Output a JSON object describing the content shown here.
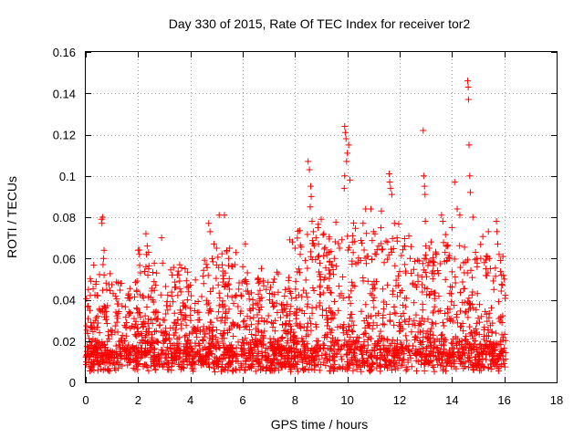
{
  "chart_data": {
    "type": "scatter",
    "title": "Day 330 of 2015, Rate Of TEC Index for receiver tor2",
    "xlabel": "GPS time / hours",
    "ylabel": "ROTI / TECUs",
    "xlim": [
      0,
      18
    ],
    "ylim": [
      0,
      0.16
    ],
    "xticks": [
      0,
      2,
      4,
      6,
      8,
      10,
      12,
      14,
      16,
      18
    ],
    "xtick_labels": [
      "0",
      "2",
      "4",
      "6",
      "8",
      "10",
      "12",
      "14",
      "16",
      "18"
    ],
    "yticks": [
      0,
      0.02,
      0.04,
      0.06,
      0.08,
      0.1,
      0.12,
      0.14,
      0.16
    ],
    "ytick_labels": [
      "0",
      "0.02",
      "0.04",
      "0.06",
      "0.08",
      "0.1",
      "0.12",
      "0.14",
      "0.16"
    ],
    "grid": true,
    "legend": "none",
    "marker": "plus",
    "color": "#ff0000",
    "series": [
      {
        "points": [
          [
            0.6,
            0.079
          ],
          [
            0.62,
            0.077
          ],
          [
            0.65,
            0.08
          ],
          [
            0.7,
            0.064
          ],
          [
            0.68,
            0.06
          ],
          [
            0.66,
            0.057
          ],
          [
            0.7,
            0.052
          ],
          [
            0.1,
            0.045
          ],
          [
            0.2,
            0.049
          ],
          [
            0.8,
            0.045
          ],
          [
            2.0,
            0.064
          ],
          [
            2.05,
            0.062
          ],
          [
            2.3,
            0.072
          ],
          [
            2.35,
            0.066
          ],
          [
            2.4,
            0.063
          ],
          [
            2.9,
            0.07
          ],
          [
            3.3,
            0.052
          ],
          [
            3.5,
            0.052
          ],
          [
            3.8,
            0.055
          ],
          [
            4.0,
            0.047
          ],
          [
            4.7,
            0.077
          ],
          [
            4.75,
            0.073
          ],
          [
            4.9,
            0.067
          ],
          [
            5.0,
            0.065
          ],
          [
            5.1,
            0.081
          ],
          [
            5.3,
            0.081
          ],
          [
            5.5,
            0.065
          ],
          [
            5.7,
            0.057
          ],
          [
            6.0,
            0.056
          ],
          [
            6.1,
            0.067
          ],
          [
            6.6,
            0.05
          ],
          [
            6.9,
            0.045
          ],
          [
            7.2,
            0.05
          ],
          [
            7.8,
            0.069
          ],
          [
            7.9,
            0.068
          ],
          [
            8.0,
            0.065
          ],
          [
            8.2,
            0.062
          ],
          [
            8.5,
            0.107
          ],
          [
            8.55,
            0.103
          ],
          [
            8.6,
            0.095
          ],
          [
            8.62,
            0.09
          ],
          [
            8.58,
            0.085
          ],
          [
            8.65,
            0.078
          ],
          [
            8.7,
            0.073
          ],
          [
            8.8,
            0.07
          ],
          [
            8.9,
            0.067
          ],
          [
            9.0,
            0.079
          ],
          [
            9.1,
            0.072
          ],
          [
            9.3,
            0.063
          ],
          [
            9.5,
            0.06
          ],
          [
            9.7,
            0.065
          ],
          [
            9.9,
            0.124
          ],
          [
            9.92,
            0.121
          ],
          [
            9.95,
            0.118
          ],
          [
            10.0,
            0.111
          ],
          [
            9.97,
            0.107
          ],
          [
            9.9,
            0.1
          ],
          [
            9.88,
            0.094
          ],
          [
            10.05,
            0.115
          ],
          [
            10.1,
            0.098
          ],
          [
            10.2,
            0.071
          ],
          [
            10.4,
            0.058
          ],
          [
            10.6,
            0.077
          ],
          [
            10.7,
            0.084
          ],
          [
            10.9,
            0.084
          ],
          [
            11.0,
            0.073
          ],
          [
            11.1,
            0.062
          ],
          [
            11.2,
            0.066
          ],
          [
            11.3,
            0.083
          ],
          [
            11.6,
            0.101
          ],
          [
            11.62,
            0.097
          ],
          [
            11.65,
            0.094
          ],
          [
            11.7,
            0.091
          ],
          [
            11.8,
            0.077
          ],
          [
            11.9,
            0.07
          ],
          [
            12.2,
            0.066
          ],
          [
            12.4,
            0.06
          ],
          [
            12.9,
            0.122
          ],
          [
            12.92,
            0.1
          ],
          [
            12.95,
            0.095
          ],
          [
            12.97,
            0.091
          ],
          [
            12.98,
            0.078
          ],
          [
            13.0,
            0.066
          ],
          [
            13.2,
            0.068
          ],
          [
            13.4,
            0.062
          ],
          [
            13.6,
            0.081
          ],
          [
            13.65,
            0.078
          ],
          [
            13.8,
            0.059
          ],
          [
            14.0,
            0.075
          ],
          [
            14.1,
            0.097
          ],
          [
            14.2,
            0.084
          ],
          [
            14.3,
            0.081
          ],
          [
            14.6,
            0.146
          ],
          [
            14.62,
            0.143
          ],
          [
            14.63,
            0.137
          ],
          [
            14.65,
            0.115
          ],
          [
            14.68,
            0.1
          ],
          [
            14.7,
            0.092
          ],
          [
            14.8,
            0.08
          ],
          [
            14.9,
            0.063
          ],
          [
            15.1,
            0.06
          ],
          [
            15.3,
            0.055
          ],
          [
            15.6,
            0.045
          ],
          [
            15.7,
            0.078
          ],
          [
            15.72,
            0.073
          ],
          [
            15.75,
            0.067
          ],
          [
            15.8,
            0.062
          ],
          [
            15.85,
            0.059
          ],
          [
            15.9,
            0.052
          ],
          [
            15.95,
            0.061
          ],
          [
            16.0,
            0.05
          ]
        ]
      }
    ],
    "scatter_density_note": "dense band"
  }
}
